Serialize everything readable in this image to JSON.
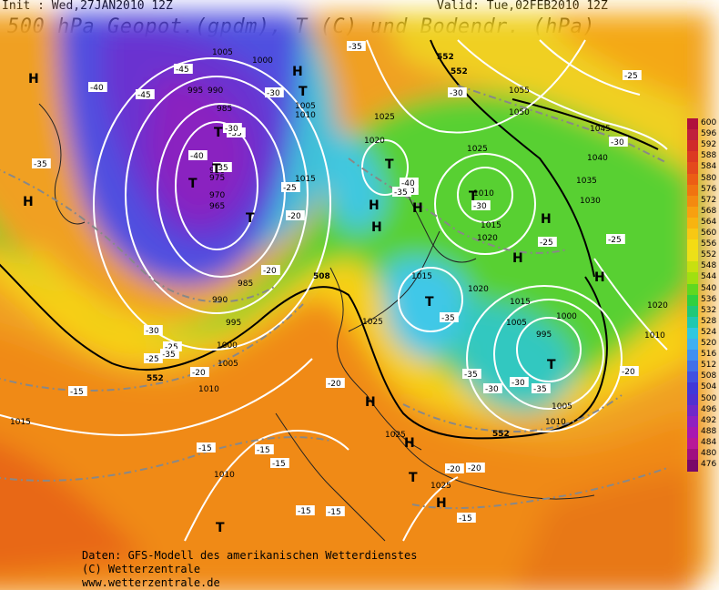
{
  "header": {
    "init": "Init : Wed,27JAN2010 12Z",
    "valid": "Valid: Tue,02FEB2010 12Z",
    "title": "500 hPa Geopot.(gpdm), T (C) und Bodendr. (hPa)"
  },
  "credits": {
    "line1": "Daten: GFS-Modell des amerikanischen Wetterdienstes",
    "line2": "(C) Wetterzentrale",
    "line3": "www.wetterzentrale.de"
  },
  "legend": {
    "labels": [
      "600",
      "596",
      "592",
      "588",
      "584",
      "580",
      "576",
      "572",
      "568",
      "564",
      "560",
      "556",
      "552",
      "548",
      "544",
      "540",
      "536",
      "532",
      "528",
      "524",
      "520",
      "516",
      "512",
      "508",
      "504",
      "500",
      "496",
      "492",
      "488",
      "484",
      "480",
      "476"
    ],
    "colors": [
      "#b0103c",
      "#c0203c",
      "#d02a2a",
      "#dc3a22",
      "#e44a1c",
      "#ec5e14",
      "#f07410",
      "#f48a10",
      "#f8a010",
      "#f8b410",
      "#f8c814",
      "#f4dc14",
      "#ece018",
      "#c8e010",
      "#a0e010",
      "#60d820",
      "#30d040",
      "#20c878",
      "#20c8b0",
      "#30c8e0",
      "#40b0f0",
      "#4090f0",
      "#4070e8",
      "#4050e0",
      "#4038d8",
      "#5030d0",
      "#7028c8",
      "#9020c0",
      "#a818b0",
      "#b81898",
      "#a01080",
      "#780868"
    ]
  },
  "map": {
    "pressure_labels": [
      "1005",
      "1000",
      "990",
      "995",
      "985",
      "980",
      "975",
      "970",
      "965",
      "985",
      "990",
      "995",
      "1000",
      "1005",
      "1010",
      "1005",
      "1010",
      "1015",
      "1025",
      "1020",
      "1025",
      "1010",
      "1015",
      "1020",
      "1025",
      "1015",
      "1020",
      "1015",
      "1005",
      "1000",
      "995",
      "1005",
      "1010",
      "1025",
      "1025",
      "1010",
      "1015",
      "1035",
      "1030",
      "1040",
      "1045",
      "1050",
      "1055",
      "1010",
      "1020"
    ],
    "temp_labels": [
      "-45",
      "-40",
      "-45",
      "-35",
      "-40",
      "-35",
      "-30",
      "-30",
      "-35",
      "-25",
      "-20",
      "-20",
      "-25",
      "-30",
      "-35",
      "-25",
      "-20",
      "-15",
      "-20",
      "-15",
      "-15",
      "-15",
      "-15",
      "-15",
      "-20",
      "-20",
      "-15",
      "-35",
      "-35",
      "-40",
      "-30",
      "-30",
      "-35",
      "-30",
      "-25",
      "-25",
      "-30",
      "-20",
      "-35",
      "-35",
      "-40",
      "-30",
      "-25"
    ],
    "height_labels": [
      "552",
      "552",
      "508",
      "552",
      "552"
    ],
    "highs": [
      "H",
      "H",
      "H",
      "H",
      "H",
      "H",
      "H",
      "H",
      "H",
      "H",
      "H",
      "H"
    ],
    "lows": [
      "T",
      "T",
      "T",
      "T",
      "T",
      "T",
      "T",
      "T",
      "T",
      "T",
      "T"
    ]
  }
}
